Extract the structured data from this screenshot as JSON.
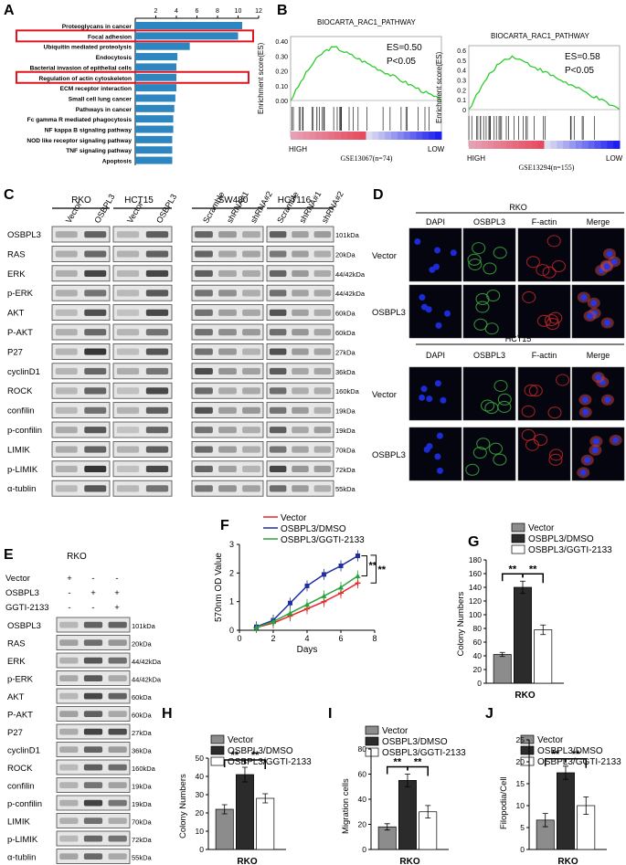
{
  "panels": {
    "A": "A",
    "B": "B",
    "C": "C",
    "D": "D",
    "E": "E",
    "F": "F",
    "G": "G",
    "H": "H",
    "I": "I",
    "J": "J"
  },
  "panel_a": {
    "type": "bar",
    "ticks": [
      "2",
      "4",
      "6",
      "8",
      "10",
      "12"
    ],
    "xlim": [
      0,
      12
    ],
    "categories": [
      "Proteoglycans in cancer",
      "Focal adhesion",
      "Ubiquitin mediated proteolysis",
      "Endocytosis",
      "Bacterial invasion of epithelial cells",
      "Regulation of actin cytoskeleton",
      "ECM receptor interaction",
      "Small cell lung cancer",
      "Pathways in cancer",
      "Fc gamma R mediated phagocytosis",
      "NF kappa B signaling pathway",
      "NOD like receptor signaling pathway",
      "TNF signaling pathway",
      "Apoptosis"
    ],
    "values": [
      10.4,
      10.0,
      5.3,
      4.1,
      4.0,
      4.0,
      4.0,
      3.9,
      3.8,
      3.7,
      3.7,
      3.6,
      3.6,
      3.6
    ],
    "bar_color": "#2e86c1",
    "highlight_color": "#e0141e",
    "highlighted": [
      "Focal adhesion",
      "Regulation of actin cytoskeleton"
    ]
  },
  "panel_b": [
    {
      "title": "BIOCARTA_RAC1_PATHWAY",
      "ylabel": "Enrichment score(ES)",
      "ticks": [
        "0.40",
        "0.30",
        "0.20",
        "0.10",
        "0.00"
      ],
      "es": "ES=0.50",
      "p": "P<0.05",
      "high": "HIGH",
      "low": "LOW",
      "dataset": "GSE13067(n=74)"
    },
    {
      "title": "BIOCARTA_RAC1_PATHWAY",
      "ylabel": "Enrichment score(ES)",
      "ticks": [
        "0.6",
        "0.5",
        "0.4",
        "0.3",
        "0.2",
        "0.1",
        "0"
      ],
      "es": "ES=0.58",
      "p": "P<0.05",
      "high": "HIGH",
      "low": "LOW",
      "dataset": "GSE13294(n=155)"
    }
  ],
  "panel_c": {
    "groups": [
      "RKO",
      "HCT15",
      "SW480",
      "HCT116"
    ],
    "lanes": {
      "rko": [
        "Vector",
        "OSBPL3"
      ],
      "hct15": [
        "Vector",
        "OSBPL3"
      ],
      "sw480": [
        "Scramble",
        "shRNA#1",
        "shRNA#2"
      ],
      "hct116": [
        "Scramble",
        "shRNA#1",
        "shRNA#2"
      ]
    },
    "proteins": [
      "OSBPL3",
      "RAS",
      "ERK",
      "p-ERK",
      "AKT",
      "P-AKT",
      "P27",
      "cyclinD1",
      "ROCK",
      "confilin",
      "p-confilin",
      "LIMIK",
      "p-LIMIK",
      "α-tublin"
    ],
    "sizes": [
      "101kDa",
      "20kDa",
      "44/42kDa",
      "44/42kDa",
      "60kDa",
      "60kDa",
      "27kDa",
      "36kDa",
      "160kDa",
      "19kDa",
      "19kDa",
      "70kDa",
      "72kDa",
      "55kDa"
    ]
  },
  "panel_d": {
    "rko": {
      "title": "RKO",
      "cols": [
        "DAPI",
        "OSBPL3",
        "F-actin",
        "Merge"
      ],
      "rows": [
        "Vector",
        "OSBPL3"
      ]
    },
    "hct15": {
      "title": "HCT15",
      "cols": [
        "DAPI",
        "OSBPL3",
        "F-actin",
        "Merge"
      ],
      "rows": [
        "Vector",
        "OSBPL3"
      ]
    }
  },
  "panel_e": {
    "title": "RKO",
    "conditions": [
      {
        "label": "Vector",
        "marks": [
          "+",
          "-",
          "-"
        ]
      },
      {
        "label": "OSBPL3",
        "marks": [
          "-",
          "+",
          "+"
        ]
      },
      {
        "label": "GGTI-2133",
        "marks": [
          "-",
          "-",
          "+"
        ]
      }
    ],
    "proteins": [
      "OSBPL3",
      "RAS",
      "ERK",
      "p-ERK",
      "AKT",
      "P-AKT",
      "P27",
      "cyclinD1",
      "ROCK",
      "confilin",
      "p-confilin",
      "LIMIK",
      "p-LIMIK",
      "α-tublin"
    ],
    "sizes": [
      "101kDa",
      "20kDa",
      "44/42kDa",
      "44/42kDa",
      "60kDa",
      "60kDa",
      "27kDa",
      "36kDa",
      "160kDa",
      "19kDa",
      "19kDa",
      "70kDa",
      "72kDa",
      "55kDa"
    ]
  },
  "panel_f": {
    "type": "line",
    "xlabel": "Days",
    "ylabel": "570nm OD Value",
    "xlim": [
      0,
      8
    ],
    "ylim": [
      0,
      3
    ],
    "xticks": [
      "0",
      "2",
      "4",
      "6",
      "8"
    ],
    "yticks": [
      "0",
      "1",
      "2",
      "3"
    ],
    "sig": "**",
    "x": [
      1,
      2,
      3,
      4,
      5,
      6,
      7
    ],
    "series": [
      {
        "name": "Vector",
        "color": "#e8262a",
        "values": [
          0.1,
          0.25,
          0.5,
          0.75,
          1.0,
          1.3,
          1.65
        ]
      },
      {
        "name": "OSBPL3/DMSO",
        "color": "#1f2f9f",
        "values": [
          0.12,
          0.35,
          0.95,
          1.55,
          1.95,
          2.25,
          2.6
        ]
      },
      {
        "name": "OSBPL3/GGTI-2133",
        "color": "#2aa33a",
        "values": [
          0.1,
          0.3,
          0.6,
          0.9,
          1.2,
          1.5,
          1.9
        ]
      }
    ]
  },
  "legend": [
    "Vector",
    "OSBPL3/DMSO",
    "OSBPL3/GGTI-2133"
  ],
  "bar_colors": [
    "#8c8c8c",
    "#2b2b2b",
    "#ffffff"
  ],
  "panel_g": {
    "type": "bar",
    "ylabel": "Colony Numbers",
    "xlabel": "RKO",
    "ylim": [
      0,
      180
    ],
    "yticks": [
      "0",
      "20",
      "40",
      "60",
      "80",
      "100",
      "120",
      "140",
      "160",
      "180"
    ],
    "values": [
      42,
      140,
      78
    ],
    "errors": [
      3,
      9,
      7
    ],
    "sig": [
      "**",
      "**"
    ]
  },
  "panel_h": {
    "type": "bar",
    "ylabel": "Colony Numbers",
    "xlabel": "RKO",
    "ylim": [
      0,
      50
    ],
    "yticks": [
      "0",
      "10",
      "20",
      "30",
      "40",
      "50"
    ],
    "values": [
      22,
      41,
      28
    ],
    "errors": [
      2.5,
      4,
      2.5
    ],
    "sig": [
      "**",
      "**"
    ]
  },
  "panel_i": {
    "type": "bar",
    "ylabel": "Migration cells",
    "xlabel": "RKO",
    "ylim": [
      0,
      80
    ],
    "yticks": [
      "0",
      "20",
      "40",
      "60",
      "80"
    ],
    "values": [
      18,
      55,
      30
    ],
    "errors": [
      2.5,
      5,
      5
    ],
    "sig": [
      "**",
      "**"
    ]
  },
  "panel_j": {
    "type": "bar",
    "ylabel": "Filopodia/Cell",
    "xlabel": "RKO",
    "ylim": [
      0,
      25
    ],
    "yticks": [
      "0",
      "5",
      "10",
      "15",
      "20",
      "25"
    ],
    "values": [
      6.7,
      17.5,
      10
    ],
    "errors": [
      1.5,
      1.5,
      2
    ],
    "sig": [
      "**",
      "**"
    ]
  }
}
